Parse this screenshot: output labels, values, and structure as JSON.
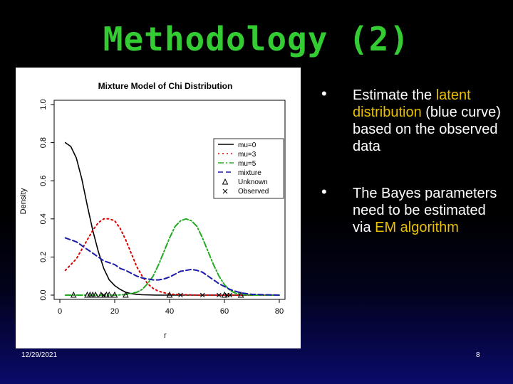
{
  "slide": {
    "title": "Methodology (2)",
    "date": "12/29/2021",
    "page_number": "8"
  },
  "bullets": [
    {
      "parts": [
        {
          "text": "Estimate the ",
          "highlight": false
        },
        {
          "text": "latent distribution",
          "highlight": true
        },
        {
          "text": " (blue curve) based on the observed data",
          "highlight": false
        }
      ]
    },
    {
      "parts": [
        {
          "text": "The Bayes parameters need to be estimated via ",
          "highlight": false
        },
        {
          "text": "EM algorithm",
          "highlight": true
        }
      ]
    }
  ],
  "chart_data": {
    "type": "line",
    "title": "Mixture Model of Chi Distribution",
    "xlabel": "r",
    "ylabel": "Density",
    "xlim": [
      0,
      80
    ],
    "ylim": [
      0,
      1.0
    ],
    "x_ticks": [
      "0",
      "20",
      "40",
      "60",
      "80"
    ],
    "y_ticks": [
      "0.0",
      "0.2",
      "0.4",
      "0.6",
      "0.8",
      "1.0"
    ],
    "legend_position": "right",
    "colors": {
      "mu0": "#000000",
      "mu3": "#dd0000",
      "mu5": "#22aa22",
      "mixture": "#1a1aaa"
    },
    "series": [
      {
        "name": "mu=0",
        "style": "solid",
        "color": "#000000",
        "x": [
          2,
          4,
          6,
          8,
          10,
          12,
          14,
          16,
          18,
          20,
          22,
          24,
          26,
          28,
          30,
          35,
          40,
          50,
          60,
          70,
          80
        ],
        "y": [
          0.8,
          0.78,
          0.72,
          0.61,
          0.47,
          0.34,
          0.23,
          0.14,
          0.08,
          0.05,
          0.03,
          0.015,
          0.008,
          0.004,
          0.002,
          0.0,
          0.0,
          0.0,
          0.0,
          0.0,
          0.0
        ]
      },
      {
        "name": "mu=3",
        "style": "dotted",
        "color": "#dd0000",
        "x": [
          2,
          4,
          6,
          8,
          10,
          12,
          14,
          16,
          18,
          20,
          22,
          24,
          26,
          28,
          30,
          32,
          34,
          36,
          40,
          50,
          60,
          70,
          80
        ],
        "y": [
          0.13,
          0.16,
          0.19,
          0.24,
          0.29,
          0.34,
          0.38,
          0.4,
          0.4,
          0.39,
          0.35,
          0.29,
          0.22,
          0.15,
          0.1,
          0.06,
          0.035,
          0.02,
          0.005,
          0.0,
          0.0,
          0.0,
          0.0
        ]
      },
      {
        "name": "mu=5",
        "style": "dashdot",
        "color": "#22aa22",
        "x": [
          2,
          10,
          20,
          24,
          28,
          30,
          32,
          34,
          36,
          38,
          40,
          42,
          44,
          46,
          48,
          50,
          52,
          54,
          56,
          58,
          60,
          62,
          64,
          66,
          70,
          80
        ],
        "y": [
          0.0,
          0.0,
          0.0,
          0.003,
          0.015,
          0.03,
          0.06,
          0.1,
          0.16,
          0.23,
          0.3,
          0.36,
          0.39,
          0.4,
          0.39,
          0.36,
          0.3,
          0.23,
          0.16,
          0.1,
          0.055,
          0.025,
          0.01,
          0.004,
          0.0,
          0.0
        ]
      },
      {
        "name": "mixture",
        "style": "dashed",
        "color": "#1a1aaa",
        "x": [
          2,
          4,
          6,
          8,
          10,
          12,
          14,
          16,
          18,
          20,
          22,
          24,
          26,
          28,
          30,
          32,
          34,
          36,
          38,
          40,
          42,
          44,
          46,
          48,
          50,
          52,
          54,
          56,
          58,
          60,
          62,
          64,
          66,
          70,
          80
        ],
        "y": [
          0.3,
          0.29,
          0.28,
          0.26,
          0.24,
          0.22,
          0.2,
          0.18,
          0.17,
          0.16,
          0.14,
          0.13,
          0.115,
          0.1,
          0.09,
          0.085,
          0.08,
          0.08,
          0.085,
          0.095,
          0.11,
          0.125,
          0.13,
          0.135,
          0.13,
          0.12,
          0.1,
          0.08,
          0.06,
          0.045,
          0.03,
          0.02,
          0.012,
          0.004,
          0.0
        ]
      },
      {
        "name": "Unknown",
        "style": "points",
        "marker": "triangle",
        "color": "#000000",
        "x": [
          5,
          10,
          11,
          12,
          13,
          15,
          17,
          18,
          20,
          24,
          40,
          60,
          66
        ],
        "y": [
          0,
          0,
          0,
          0,
          0,
          0,
          0,
          0,
          0,
          0,
          0,
          0,
          0
        ]
      },
      {
        "name": "Observed",
        "style": "points",
        "marker": "x",
        "color": "#000000",
        "x": [
          16,
          44,
          52,
          58,
          61,
          62
        ],
        "y": [
          0,
          0,
          0,
          0,
          0,
          0
        ]
      }
    ]
  }
}
